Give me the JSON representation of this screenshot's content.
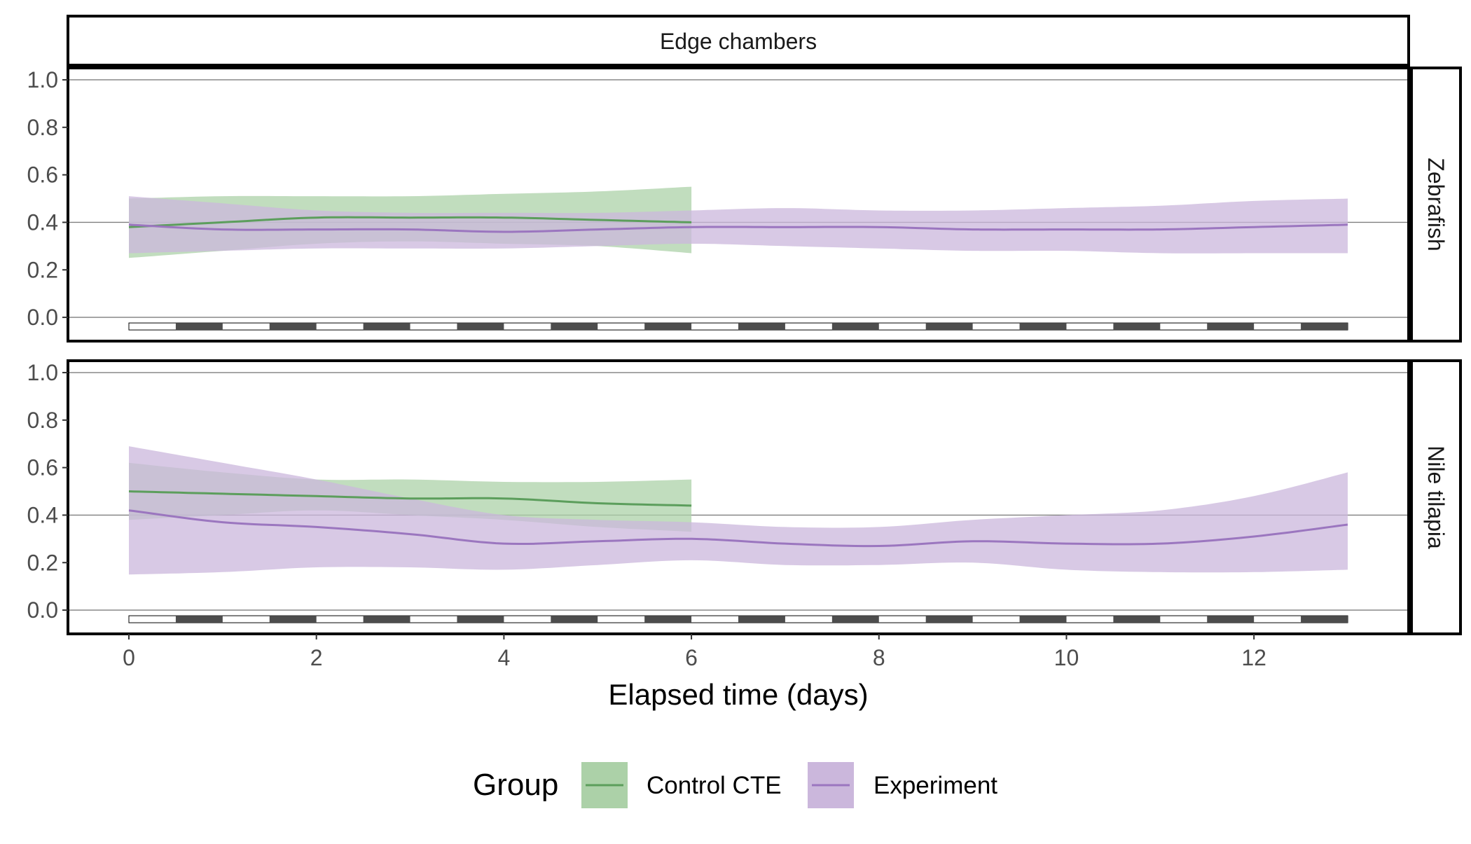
{
  "chart_data": {
    "type": "line",
    "title": "Edge chambers",
    "xlabel": "Elapsed time (days)",
    "ylabel": "",
    "xlim": [
      -0.65,
      13.65
    ],
    "ylim": [
      -0.1,
      1.05
    ],
    "x_ticks": [
      0,
      2,
      4,
      6,
      8,
      10,
      12
    ],
    "y_ticks": [
      0.0,
      0.2,
      0.4,
      0.6,
      0.8,
      1.0
    ],
    "reference_lines": [
      0.0,
      0.4,
      1.0
    ],
    "light_dark_bar": {
      "start": 0,
      "end": 13,
      "period_days": 1,
      "first_light_days": 0.5,
      "light_color": "#ffffff",
      "dark_color": "#4d4d4d"
    },
    "legend": {
      "title": "Group",
      "position": "bottom",
      "entries": [
        {
          "label": "Control CTE",
          "color": "#5c9e5c",
          "fill": "#acd1a8"
        },
        {
          "label": "Experiment",
          "color": "#9b76bf",
          "fill": "#cbb7dc"
        }
      ]
    },
    "panels": [
      {
        "strip": "Zebrafish",
        "series": [
          {
            "name": "Control CTE",
            "x": [
              0,
              1,
              2,
              3,
              4,
              5,
              6
            ],
            "y": [
              0.38,
              0.4,
              0.42,
              0.42,
              0.42,
              0.41,
              0.4
            ],
            "lower": [
              0.25,
              0.28,
              0.31,
              0.32,
              0.31,
              0.3,
              0.27
            ],
            "upper": [
              0.5,
              0.51,
              0.51,
              0.51,
              0.52,
              0.53,
              0.55
            ]
          },
          {
            "name": "Experiment",
            "x": [
              0,
              1,
              2,
              3,
              4,
              5,
              6,
              7,
              8,
              9,
              10,
              11,
              12,
              13
            ],
            "y": [
              0.39,
              0.37,
              0.37,
              0.37,
              0.36,
              0.37,
              0.38,
              0.38,
              0.38,
              0.37,
              0.37,
              0.37,
              0.38,
              0.39
            ],
            "lower": [
              0.27,
              0.28,
              0.29,
              0.29,
              0.29,
              0.3,
              0.31,
              0.3,
              0.29,
              0.28,
              0.28,
              0.27,
              0.27,
              0.27
            ],
            "upper": [
              0.51,
              0.48,
              0.45,
              0.44,
              0.44,
              0.44,
              0.45,
              0.46,
              0.45,
              0.45,
              0.46,
              0.47,
              0.49,
              0.5
            ]
          }
        ]
      },
      {
        "strip": "Nile tilapia",
        "series": [
          {
            "name": "Control CTE",
            "x": [
              0,
              1,
              2,
              3,
              4,
              5,
              6
            ],
            "y": [
              0.5,
              0.49,
              0.48,
              0.47,
              0.47,
              0.45,
              0.44
            ],
            "lower": [
              0.38,
              0.4,
              0.42,
              0.4,
              0.38,
              0.35,
              0.33
            ],
            "upper": [
              0.62,
              0.58,
              0.55,
              0.55,
              0.54,
              0.54,
              0.55
            ]
          },
          {
            "name": "Experiment",
            "x": [
              0,
              1,
              2,
              3,
              4,
              5,
              6,
              7,
              8,
              9,
              10,
              11,
              12,
              13
            ],
            "y": [
              0.42,
              0.37,
              0.35,
              0.32,
              0.28,
              0.29,
              0.3,
              0.28,
              0.27,
              0.29,
              0.28,
              0.28,
              0.31,
              0.36
            ],
            "lower": [
              0.15,
              0.16,
              0.18,
              0.18,
              0.17,
              0.19,
              0.21,
              0.19,
              0.19,
              0.2,
              0.17,
              0.16,
              0.16,
              0.17
            ],
            "upper": [
              0.69,
              0.62,
              0.55,
              0.47,
              0.4,
              0.38,
              0.37,
              0.35,
              0.35,
              0.38,
              0.4,
              0.42,
              0.48,
              0.58
            ]
          }
        ]
      }
    ]
  }
}
